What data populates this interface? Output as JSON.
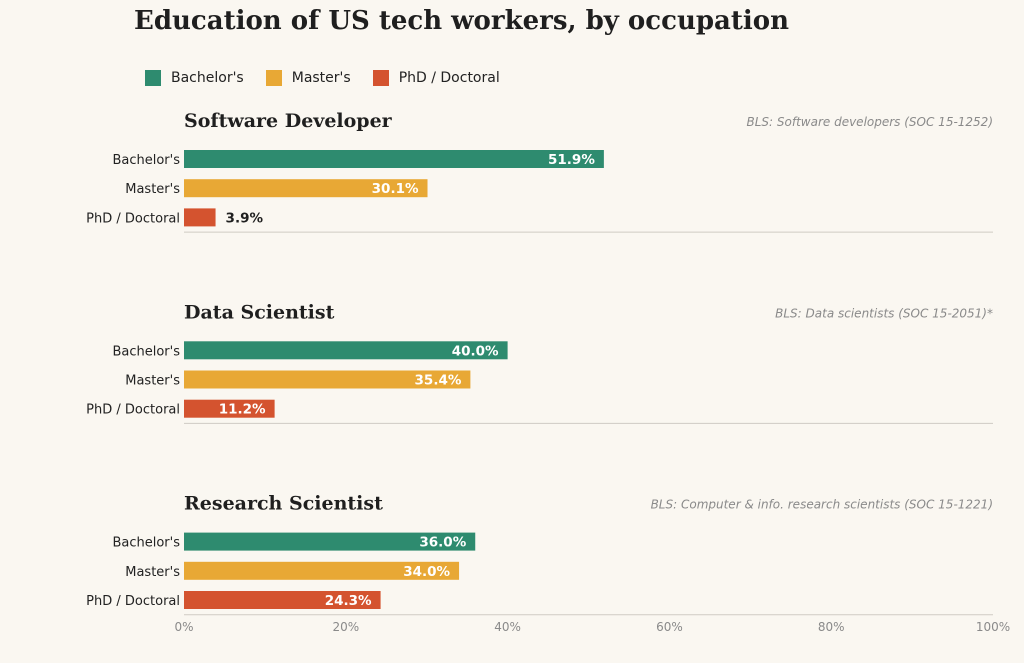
{
  "title": "Education of US tech workers, by occupation",
  "legend": [
    {
      "label": "Bachelor's",
      "color": "#2e8b6f"
    },
    {
      "label": "Master's",
      "color": "#e8a835"
    },
    {
      "label": "PhD / Doctoral",
      "color": "#d4532f"
    }
  ],
  "chart_data": {
    "type": "bar",
    "orientation": "horizontal",
    "title": "Education of US tech workers, by occupation",
    "categories": [
      "Bachelor's",
      "Master's",
      "PhD / Doctoral"
    ],
    "xlim": [
      0,
      100
    ],
    "xticks": [
      "0%",
      "20%",
      "40%",
      "60%",
      "80%",
      "100%"
    ],
    "grid": false,
    "legend_position": "top-left",
    "panels": [
      {
        "name": "Software Developer",
        "source": "BLS: Software developers (SOC 15-1252)",
        "values": [
          51.9,
          30.1,
          3.9
        ],
        "labels": [
          "51.9%",
          "30.1%",
          "3.9%"
        ]
      },
      {
        "name": "Data Scientist",
        "source": "BLS: Data scientists (SOC 15-2051)*",
        "values": [
          40.0,
          35.4,
          11.2
        ],
        "labels": [
          "40.0%",
          "35.4%",
          "11.2%"
        ]
      },
      {
        "name": "Research Scientist",
        "source": "BLS: Computer & info. research scientists (SOC 15-1221)",
        "values": [
          36.0,
          34.0,
          24.3
        ],
        "labels": [
          "36.0%",
          "34.0%",
          "24.3%"
        ]
      }
    ]
  }
}
